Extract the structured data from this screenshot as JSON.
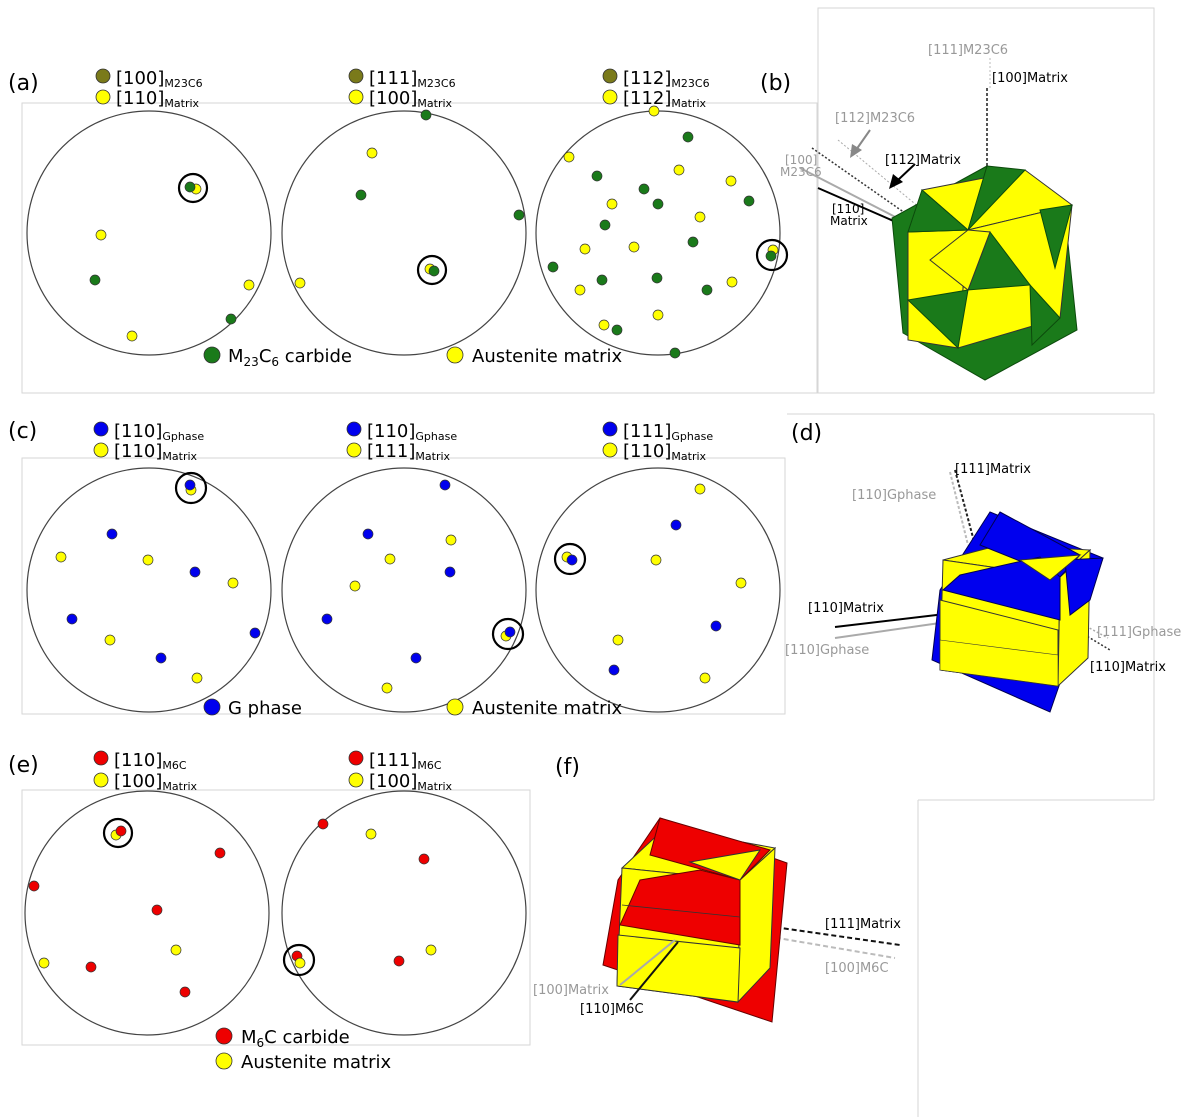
{
  "panel_labels": {
    "a": "(a)",
    "b": "(b)",
    "c": "(c)",
    "d": "(d)",
    "e": "(e)",
    "f": "(f)"
  },
  "colors": {
    "carbide_green": "#1a7a1a",
    "axis_olive": "#7a7a1a",
    "matrix_yellow": "#ffff00",
    "gphase_blue": "#0000ee",
    "m6c_red": "#ee0000",
    "gray_text": "#888888"
  },
  "row_a": {
    "legends": [
      {
        "phase_axis": "[100]",
        "phase_sub": "M23C6",
        "matrix_axis": "[110]",
        "matrix_sub": "Matrix"
      },
      {
        "phase_axis": "[111]",
        "phase_sub": "M23C6",
        "matrix_axis": "[100]",
        "matrix_sub": "Matrix"
      },
      {
        "phase_axis": "[112]",
        "phase_sub": "M23C6",
        "matrix_axis": "[112]",
        "matrix_sub": "Matrix"
      }
    ],
    "bottom_legend": {
      "phase_main": "M",
      "phase_sub1": "23",
      "phase_mid": "C",
      "phase_sub2": "6",
      "phase_tail": " carbide",
      "matrix_label": "Austenite matrix"
    }
  },
  "row_c": {
    "legends": [
      {
        "phase_axis": "[110]",
        "phase_sub": "Gphase",
        "matrix_axis": "[110]",
        "matrix_sub": "Matrix"
      },
      {
        "phase_axis": "[110]",
        "phase_sub": "Gphase",
        "matrix_axis": "[111]",
        "matrix_sub": "Matrix"
      },
      {
        "phase_axis": "[111]",
        "phase_sub": "Gphase",
        "matrix_axis": "[110]",
        "matrix_sub": "Matrix"
      }
    ],
    "bottom_legend": {
      "phase_label": "G phase",
      "matrix_label": "Austenite matrix"
    }
  },
  "row_e": {
    "legends": [
      {
        "phase_axis": "[110]",
        "phase_sub": "M6C",
        "matrix_axis": "[100]",
        "matrix_sub": "Matrix"
      },
      {
        "phase_axis": "[111]",
        "phase_sub": "M6C",
        "matrix_axis": "[100]",
        "matrix_sub": "Matrix"
      }
    ],
    "bottom_legend": {
      "phase_main": "M",
      "phase_sub": "6",
      "phase_tail": "C carbide",
      "matrix_label": "Austenite matrix"
    }
  },
  "panel_b": {
    "l_111_m23c6": "[111]",
    "l_111_m23c6_sub": "M23C6",
    "l_100_matrix": "[100]",
    "l_100_matrix_sub": "Matrix",
    "l_112_m23c6": "[112]",
    "l_112_m23c6_sub": "M23C6",
    "l_112_matrix": "[112]",
    "l_112_matrix_sub": "Matrix",
    "l_100_m23c6": "[100]",
    "l_100_m23c6_sub": "M23C6",
    "l_110_matrix": "[110]",
    "l_110_matrix_sub": "Matrix"
  },
  "panel_d": {
    "l_111_matrix": "[111]Matrix",
    "l_110_gphase_top": "[110]Gphase",
    "l_110_matrix_left": "[110]Matrix",
    "l_110_gphase_left": "[110]Gphase",
    "l_111_gphase": "[111]Gphase",
    "l_110_matrix_right": "[110]Matrix"
  },
  "panel_f": {
    "l_111_matrix": "[111]Matrix",
    "l_100_m6c": "[100]M6C",
    "l_100_matrix": "[100]Matrix",
    "l_110_m6c": "[110]M6C"
  }
}
